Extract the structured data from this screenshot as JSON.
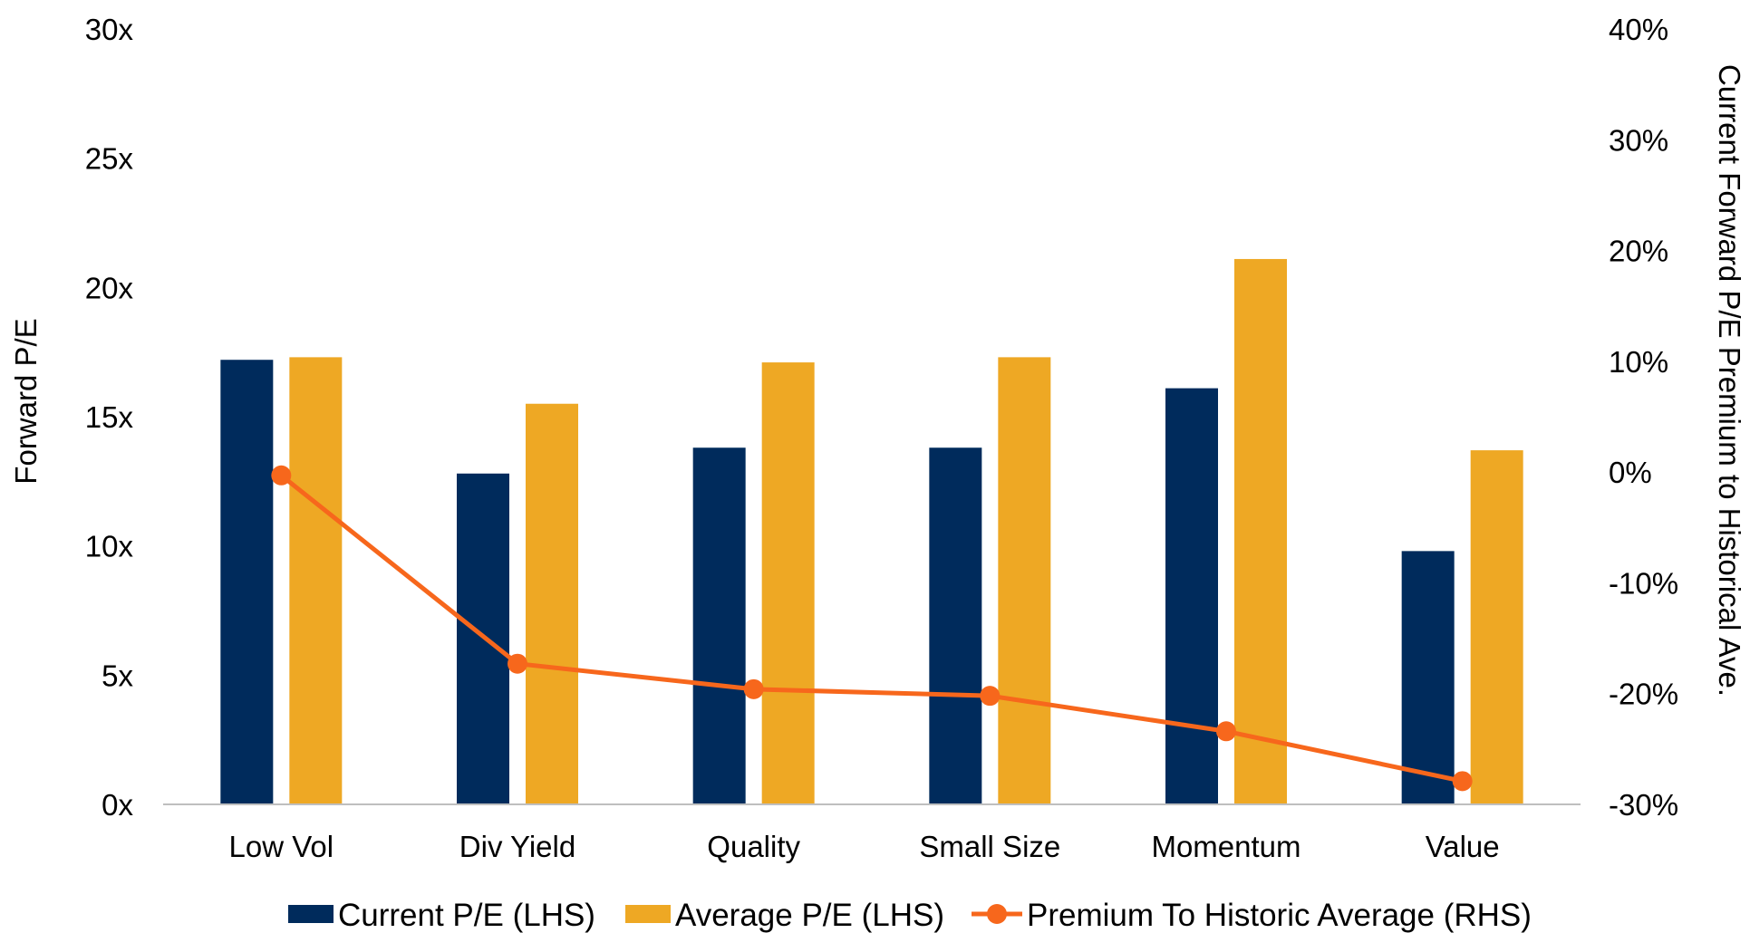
{
  "chart_data": {
    "type": "bar",
    "categories": [
      "Low Vol",
      "Div Yield",
      "Quality",
      "Small Size",
      "Momentum",
      "Value"
    ],
    "series": [
      {
        "name": "Current P/E (LHS)",
        "kind": "bar",
        "axis": "left",
        "color": "#002b5c",
        "values": [
          17.2,
          12.8,
          13.8,
          13.8,
          16.1,
          9.8
        ]
      },
      {
        "name": "Average P/E (LHS)",
        "kind": "bar",
        "axis": "left",
        "color": "#eea824",
        "values": [
          17.3,
          15.5,
          17.1,
          17.3,
          21.1,
          13.7
        ]
      },
      {
        "name": "Premium To Historic Average (RHS)",
        "kind": "line",
        "axis": "right",
        "color": "#f7671c",
        "values": [
          -0.3,
          -17.3,
          -19.6,
          -20.2,
          -23.4,
          -27.9
        ]
      }
    ],
    "left_axis": {
      "title": "Forward P/E",
      "ylim": [
        0,
        30
      ],
      "ticks": [
        0,
        5,
        10,
        15,
        20,
        25,
        30
      ],
      "tick_labels": [
        "0x",
        "5x",
        "10x",
        "15x",
        "20x",
        "25x",
        "30x"
      ]
    },
    "right_axis": {
      "title": "Current Forward P/E Premium to Historical Ave.",
      "ylim": [
        -30,
        40
      ],
      "ticks": [
        -30,
        -20,
        -10,
        0,
        10,
        20,
        30,
        40
      ],
      "tick_labels": [
        "-30%",
        "-20%",
        "-10%",
        "0%",
        "10%",
        "20%",
        "30%",
        "40%"
      ]
    },
    "grid": false,
    "legend_position": "bottom"
  }
}
